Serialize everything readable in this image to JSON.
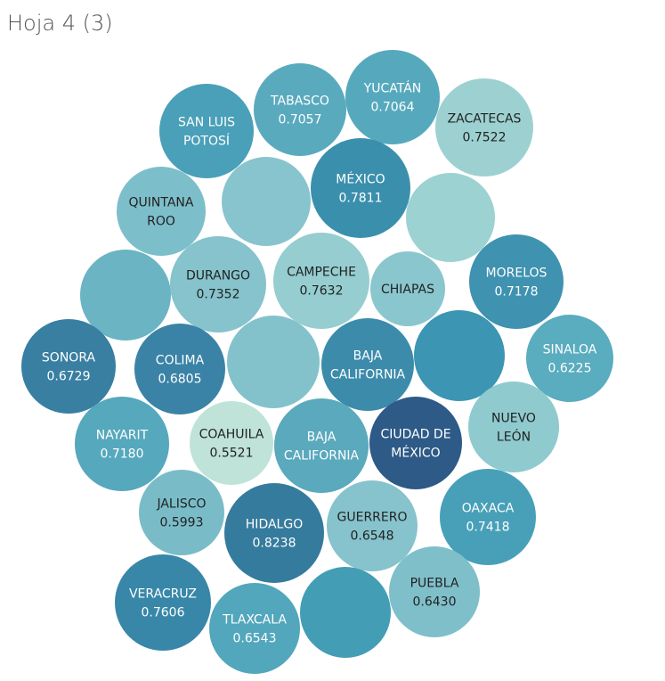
{
  "sheet_title": "Hoja 4 (3)",
  "chart_data": {
    "type": "packed-bubble",
    "title": "Hoja 4 (3)",
    "bubbles": [
      {
        "label": "SAN LUIS\nPOTOSÍ",
        "value": null,
        "color": "#4aa0b8"
      },
      {
        "label": "TABASCO",
        "value": "0.7057",
        "color": "#5aaabe"
      },
      {
        "label": "YUCATÁN",
        "value": "0.7064",
        "color": "#56a9bd"
      },
      {
        "label": "ZACATECAS",
        "value": "0.7522",
        "color": "#9dd1d1"
      },
      {
        "label": "QUINTANA\nROO",
        "value": null,
        "color": "#7dbecb"
      },
      {
        "label": "",
        "value": null,
        "color": "#88c4cd"
      },
      {
        "label": "MÉXICO",
        "value": "0.7811",
        "color": "#3a8fad"
      },
      {
        "label": "",
        "value": null,
        "color": "#9cd2d2"
      },
      {
        "label": "",
        "value": null,
        "color": "#6ab4c3"
      },
      {
        "label": "DURANGO",
        "value": "0.7352",
        "color": "#86c3cc"
      },
      {
        "label": "CAMPECHE",
        "value": "0.7632",
        "color": "#95cdd0"
      },
      {
        "label": "CHIAPAS",
        "value": null,
        "color": "#8ac6ce"
      },
      {
        "label": "MORELOS",
        "value": "0.7178",
        "color": "#3f92b0"
      },
      {
        "label": "SONORA",
        "value": "0.6729",
        "color": "#387fa2"
      },
      {
        "label": "COLIMA",
        "value": "0.6805",
        "color": "#3a83a6"
      },
      {
        "label": "",
        "value": null,
        "color": "#83c2cb"
      },
      {
        "label": "BAJA\nCALIFORNIA",
        "value": null,
        "color": "#3c8bab"
      },
      {
        "label": "",
        "value": null,
        "color": "#3c95b2"
      },
      {
        "label": "SINALOA",
        "value": "0.6225",
        "color": "#5aacbf"
      },
      {
        "label": "NAYARIT",
        "value": "0.7180",
        "color": "#56a8bd"
      },
      {
        "label": "COAHUILA",
        "value": "0.5521",
        "color": "#bfe3d9"
      },
      {
        "label": "BAJA\nCALIFORNIA",
        "value": null,
        "color": "#5aa9bd"
      },
      {
        "label": "CIUDAD DE\nMÉXICO",
        "value": null,
        "color": "#2d5a87"
      },
      {
        "label": "NUEVO\nLEÓN",
        "value": null,
        "color": "#8fcacf"
      },
      {
        "label": "JALISCO",
        "value": "0.5993",
        "color": "#79bcc8"
      },
      {
        "label": "HIDALGO",
        "value": "0.8238",
        "color": "#357b9d"
      },
      {
        "label": "GUERRERO",
        "value": "0.6548",
        "color": "#86c3cc"
      },
      {
        "label": "OAXACA",
        "value": "0.7418",
        "color": "#47a0b8"
      },
      {
        "label": "VERACRUZ",
        "value": "0.7606",
        "color": "#3887a8"
      },
      {
        "label": "TLAXCALA",
        "value": "0.6543",
        "color": "#52a7bc"
      },
      {
        "label": "",
        "value": null,
        "color": "#439db5"
      },
      {
        "label": "PUEBLA",
        "value": "0.6430",
        "color": "#7fbfca"
      }
    ]
  }
}
